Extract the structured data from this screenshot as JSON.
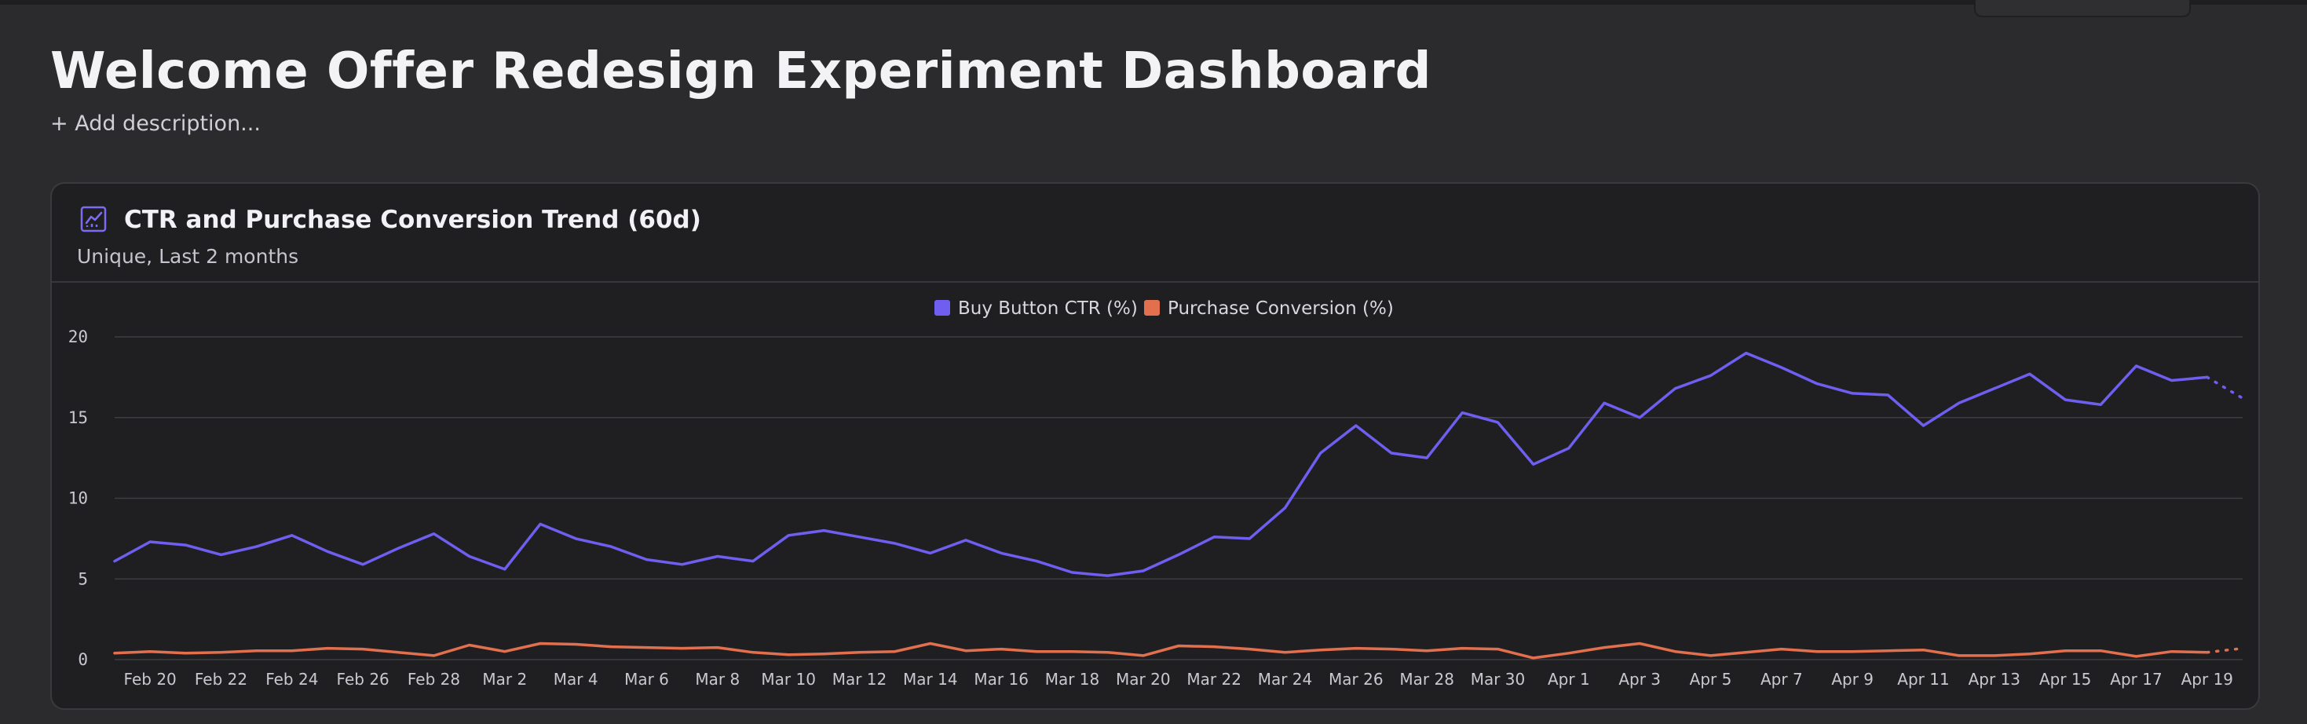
{
  "page": {
    "title": "Welcome Offer Redesign Experiment Dashboard",
    "add_description": "+ Add description..."
  },
  "card": {
    "title": "CTR and Purchase Conversion Trend (60d)",
    "subtitle": "Unique, Last 2 months",
    "icon": "line-chart-icon"
  },
  "colors": {
    "background": "#2b2b2d",
    "card": "#1f1f21",
    "series_ctr": "#6e5ff0",
    "series_conv": "#e2704e",
    "gridline": "#3e3e42"
  },
  "chart_data": {
    "type": "line",
    "legend_position": "top-center",
    "grid": true,
    "ylim": [
      0,
      20
    ],
    "y_ticks": [
      0,
      5,
      10,
      15,
      20
    ],
    "x_tick_labels": [
      "Feb 20",
      "Feb 22",
      "Feb 24",
      "Feb 26",
      "Feb 28",
      "Mar 2",
      "Mar 4",
      "Mar 6",
      "Mar 8",
      "Mar 10",
      "Mar 12",
      "Mar 14",
      "Mar 16",
      "Mar 18",
      "Mar 20",
      "Mar 22",
      "Mar 24",
      "Mar 26",
      "Mar 28",
      "Mar 30",
      "Apr 1",
      "Apr 3",
      "Apr 5",
      "Apr 7",
      "Apr 9",
      "Apr 11",
      "Apr 13",
      "Apr 15",
      "Apr 17",
      "Apr 19"
    ],
    "x_start": "Feb 19",
    "x_end": "Apr 20",
    "incomplete_last_point": true,
    "series": [
      {
        "name": "Buy Button CTR (%)",
        "color": "#6e5ff0",
        "values": [
          6.1,
          7.3,
          7.1,
          6.5,
          7.0,
          7.7,
          6.7,
          5.9,
          6.9,
          7.8,
          6.4,
          5.6,
          8.4,
          7.5,
          7.0,
          6.2,
          5.9,
          6.4,
          6.1,
          7.7,
          8.0,
          7.6,
          7.2,
          6.6,
          7.4,
          6.6,
          6.1,
          5.4,
          5.2,
          5.5,
          6.5,
          7.6,
          7.5,
          9.4,
          12.8,
          14.5,
          12.8,
          12.5,
          15.3,
          14.7,
          12.1,
          13.1,
          15.9,
          15.0,
          16.8,
          17.6,
          19.0,
          18.1,
          17.1,
          16.5,
          16.4,
          14.5,
          15.9,
          16.8,
          17.7,
          16.1,
          15.8,
          18.2,
          17.3,
          17.5,
          16.2
        ]
      },
      {
        "name": "Purchase Conversion (%)",
        "color": "#e2704e",
        "values": [
          0.4,
          0.5,
          0.4,
          0.45,
          0.55,
          0.55,
          0.7,
          0.65,
          0.45,
          0.25,
          0.9,
          0.5,
          1.0,
          0.95,
          0.8,
          0.75,
          0.7,
          0.75,
          0.45,
          0.3,
          0.35,
          0.45,
          0.5,
          1.0,
          0.55,
          0.65,
          0.5,
          0.5,
          0.45,
          0.25,
          0.85,
          0.8,
          0.65,
          0.45,
          0.6,
          0.7,
          0.65,
          0.55,
          0.7,
          0.65,
          0.1,
          0.4,
          0.75,
          1.0,
          0.5,
          0.25,
          0.45,
          0.65,
          0.5,
          0.5,
          0.55,
          0.6,
          0.25,
          0.25,
          0.35,
          0.55,
          0.55,
          0.2,
          0.5,
          0.45,
          0.7
        ]
      }
    ]
  }
}
